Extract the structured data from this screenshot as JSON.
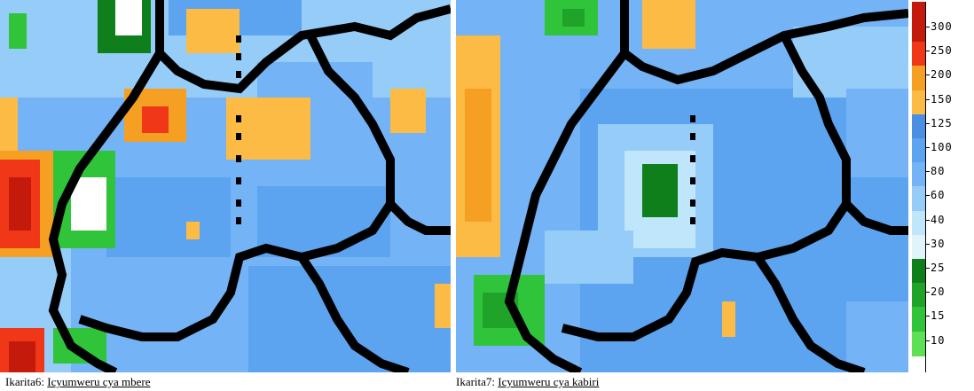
{
  "maps": [
    {
      "caption_prefix": "Ikarita6: ",
      "caption_link": "Icyumweru cya mbere"
    },
    {
      "caption_prefix": "Ikarita7: ",
      "caption_link": "Icyumweru cya kabiri"
    }
  ],
  "legend": {
    "bins": [
      {
        "label": "300",
        "color": "#c41a0c"
      },
      {
        "label": "250",
        "color": "#f03818"
      },
      {
        "label": "200",
        "color": "#f5a023"
      },
      {
        "label": "150",
        "color": "#fbbb45"
      },
      {
        "label": "125",
        "color": "#4a8fe3"
      },
      {
        "label": "100",
        "color": "#5ca3f0"
      },
      {
        "label": "80",
        "color": "#74b3f5"
      },
      {
        "label": "60",
        "color": "#96ccf8"
      },
      {
        "label": "40",
        "color": "#bfe6fb"
      },
      {
        "label": "30",
        "color": "#dff4fb"
      },
      {
        "label": "25",
        "color": "#0f7f1b"
      },
      {
        "label": "20",
        "color": "#1fa429"
      },
      {
        "label": "15",
        "color": "#2fc43a"
      },
      {
        "label": "10",
        "color": "#5ee056"
      }
    ],
    "top_color": "#c41a0c"
  },
  "colors": {
    "border": "#000000",
    "background": "#ffffff"
  }
}
